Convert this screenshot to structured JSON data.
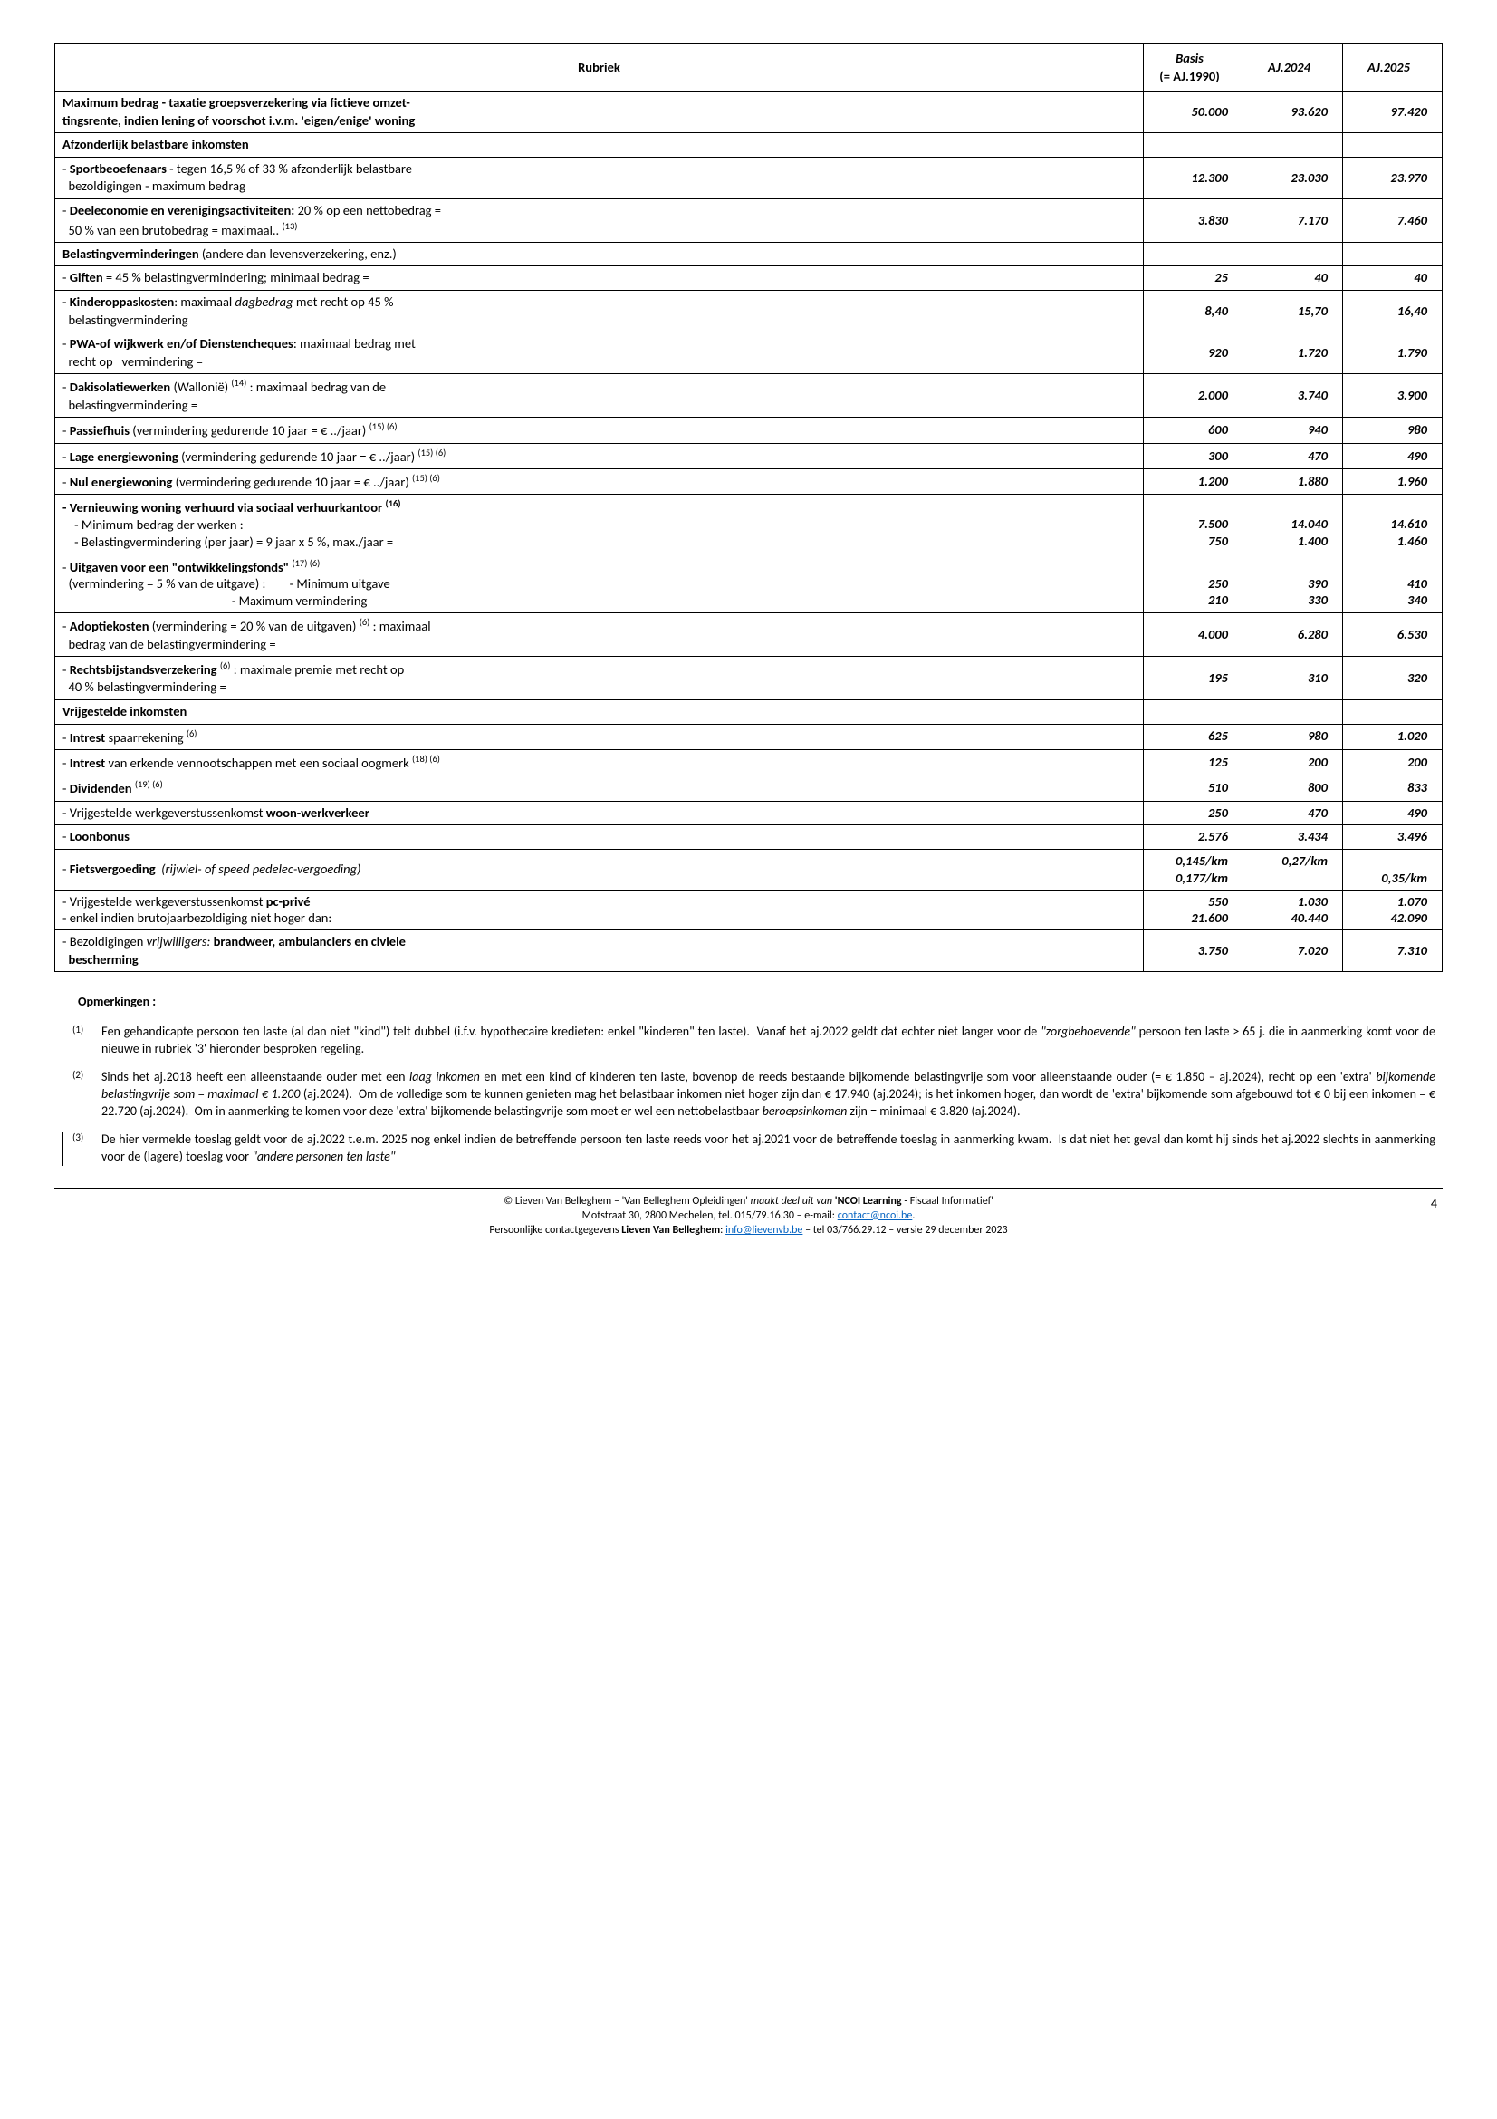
{
  "headers": {
    "rubriek": "Rubriek",
    "basis": "Basis",
    "basis_sub": "(= AJ.1990)",
    "aj2024": "AJ.2024",
    "aj2025": "AJ.2025"
  },
  "rows": [
    {
      "type": "data",
      "html": "<b>Maximum bedrag - taxatie groepsverzekering via fictieve omzet-<br>tingsrente, indien lening of voorschot i.v.m. 'eigen/enige' woning</b>",
      "v": [
        "50.000",
        "93.620",
        "97.420"
      ]
    },
    {
      "type": "section",
      "html": "<b>Afzonderlijk belastbare inkomsten</b>"
    },
    {
      "type": "data",
      "html": "- <b>Sportbeoefenaars</b> - tegen 16,5 % of 33 % afzonderlijk belastbare<br>&nbsp;&nbsp;bezoldigingen - maximum bedrag",
      "v": [
        "12.300",
        "23.030",
        "23.970"
      ]
    },
    {
      "type": "data",
      "html": "- <b>Deeleconomie en verenigingsactiviteiten:</b> 20 % op een nettobedrag =<br>&nbsp;&nbsp;50 % van een brutobedrag = maximaal.. <sup>(13)</sup>",
      "v": [
        "3.830",
        "7.170",
        "7.460"
      ]
    },
    {
      "type": "section",
      "html": "<b>Belastingverminderingen</b> (andere dan levensverzekering, enz.)"
    },
    {
      "type": "data",
      "html": "- <b>Giften</b> = 45 % belastingvermindering; minimaal bedrag =",
      "v": [
        "25",
        "40",
        "40"
      ]
    },
    {
      "type": "data",
      "html": "- <b>Kinderoppaskosten</b>: maximaal <i>dagbedrag</i> met recht op 45 %<br>&nbsp;&nbsp;belastingvermindering",
      "v": [
        "8,40",
        "15,70",
        "16,40"
      ]
    },
    {
      "type": "data",
      "html": "- <b>PWA-of wijkwerk en/of Dienstencheques</b>: maximaal bedrag met<br>&nbsp;&nbsp;recht op &nbsp;&nbsp;vermindering =",
      "v": [
        "920",
        "1.720",
        "1.790"
      ]
    },
    {
      "type": "data",
      "html": "- <b>Dakisolatiewerken</b> (Wallonië) <sup>(14)</sup> : maximaal bedrag van de<br>&nbsp;&nbsp;belastingvermindering =",
      "v": [
        "2.000",
        "3.740",
        "3.900"
      ]
    },
    {
      "type": "data",
      "html": "- <b>Passiefhuis</b> (vermindering gedurende 10 jaar = € ../jaar) <sup>(15) (6)</sup>",
      "v": [
        "600",
        "940",
        "980"
      ]
    },
    {
      "type": "data",
      "html": "- <b>Lage energiewoning</b> (vermindering gedurende 10 jaar = € ../jaar) <sup>(15) (6)</sup>",
      "v": [
        "300",
        "470",
        "490"
      ]
    },
    {
      "type": "data",
      "html": "- <b>Nul energiewoning</b> (vermindering gedurende 10 jaar = € ../jaar) <sup>(15) (6)</sup>",
      "v": [
        "1.200",
        "1.880",
        "1.960"
      ]
    },
    {
      "type": "data",
      "html": "<b>- Vernieuwing woning verhuurd via sociaal verhuurkantoor <sup>(16)</sup></b><br>&nbsp;&nbsp;&nbsp;&nbsp;- Minimum bedrag der werken :<br>&nbsp;&nbsp;&nbsp;&nbsp;- Belastingvermindering (per jaar) = 9 jaar x 5 %, max./jaar =",
      "v": [
        "<br>7.500<br>750",
        "<br>14.040<br>1.400",
        "<br>14.610<br>1.460"
      ],
      "multiline": true
    },
    {
      "type": "data",
      "html": "- <b>Uitgaven voor een \"ontwikkelingsfonds\"</b> <sup>(17) (6)</sup><br>&nbsp;&nbsp;(vermindering = 5 % van de uitgave) :&nbsp;&nbsp;&nbsp;&nbsp;&nbsp;&nbsp;&nbsp;&nbsp;- Minimum uitgave<br>&nbsp;&nbsp;&nbsp;&nbsp;&nbsp;&nbsp;&nbsp;&nbsp;&nbsp;&nbsp;&nbsp;&nbsp;&nbsp;&nbsp;&nbsp;&nbsp;&nbsp;&nbsp;&nbsp;&nbsp;&nbsp;&nbsp;&nbsp;&nbsp;&nbsp;&nbsp;&nbsp;&nbsp;&nbsp;&nbsp;&nbsp;&nbsp;&nbsp;&nbsp;&nbsp;&nbsp;&nbsp;&nbsp;&nbsp;&nbsp;&nbsp;&nbsp;&nbsp;&nbsp;&nbsp;&nbsp;&nbsp;&nbsp;&nbsp;&nbsp;&nbsp;&nbsp;&nbsp;&nbsp;&nbsp;&nbsp;&nbsp;- Maximum vermindering",
      "v": [
        "<br>250<br>210",
        "<br>390<br>330",
        "<br>410<br>340"
      ],
      "multiline": true
    },
    {
      "type": "data",
      "html": "- <b>Adoptiekosten</b> (vermindering = 20 % van de uitgaven) <sup>(6)</sup> : maximaal<br>&nbsp;&nbsp;bedrag van de belastingvermindering =",
      "v": [
        "4.000",
        "6.280",
        "6.530"
      ]
    },
    {
      "type": "data",
      "html": "- <b>Rechtsbijstandsverzekering</b> <sup>(6)</sup> : maximale premie met recht op<br>&nbsp;&nbsp;40 % belastingvermindering =",
      "v": [
        "195",
        "310",
        "320"
      ]
    },
    {
      "type": "section",
      "html": "<b>Vrijgestelde inkomsten</b>"
    },
    {
      "type": "data",
      "html": "- <b>Intrest</b> spaarrekening <sup>(6)</sup>",
      "v": [
        "625",
        "980",
        "1.020"
      ]
    },
    {
      "type": "data",
      "html": "- <b>Intrest</b> van erkende vennootschappen met een sociaal oogmerk <sup>(18) (6)</sup>",
      "v": [
        "125",
        "200",
        "200"
      ]
    },
    {
      "type": "data",
      "html": "- <b>Dividenden</b> <sup>(19) (6)</sup>",
      "v": [
        "510",
        "800",
        "833"
      ]
    },
    {
      "type": "data",
      "html": "- Vrijgestelde werkgeverstussenkomst <b>woon-werkverkeer</b>",
      "v": [
        "250",
        "470",
        "490"
      ]
    },
    {
      "type": "data",
      "html": "- <b>Loonbonus</b>",
      "v": [
        "2.576",
        "3.434",
        "3.496"
      ]
    },
    {
      "type": "data",
      "html": "- <b>Fietsvergoeding</b> &nbsp;<i>(rijwiel- of speed pedelec-vergoeding)</i>",
      "v": [
        "0,145/km<br>0,177/km",
        "0,27/km<br>&nbsp;",
        "<br>0,35/km"
      ],
      "multiline": true
    },
    {
      "type": "data",
      "html": "- Vrijgestelde werkgeverstussenkomst <b>pc-privé</b><br>- enkel indien brutojaarbezoldiging niet hoger dan:",
      "v": [
        "550<br>21.600",
        "1.030<br>40.440",
        "1.070<br>42.090"
      ],
      "multiline": true
    },
    {
      "type": "data",
      "html": "- Bezoldigingen <i>vrijwilligers:</i> <b>brandweer, ambulanciers en civiele<br>&nbsp;&nbsp;bescherming</b>",
      "v": [
        "3.750",
        "7.020",
        "7.310"
      ]
    }
  ],
  "notes": {
    "title": "Opmerkingen :",
    "items": [
      {
        "mark": "(1)",
        "html": "Een gehandicapte persoon ten laste (al dan niet \"kind\") telt dubbel (i.f.v. hypothecaire kredieten: enkel \"kinderen\" ten laste).&nbsp; Vanaf het aj.2022 geldt dat echter niet langer voor de <i>\"zorgbehoevende\"</i> persoon ten laste &gt; 65 j. die in aanmerking komt voor de nieuwe in rubriek '3' hieronder besproken regeling."
      },
      {
        "mark": "(2)",
        "html": "Sinds het aj.2018 heeft een alleenstaande ouder met een <i>laag inkomen</i> en met een kind of kinderen ten laste, bovenop de reeds bestaande bijkomende belastingvrije som voor alleenstaande ouder (= € 1.850 – aj.2024), recht op een 'extra' <i>bijkomende belastingvrije som = maximaal € 1.200</i> (aj.2024).&nbsp; Om de volledige som te kunnen genieten mag het belastbaar inkomen niet hoger zijn dan € 17.940 (aj.2024); is het inkomen hoger, dan wordt de 'extra' bijkomende som afgebouwd tot € 0 bij een inkomen = € 22.720 (aj.2024).&nbsp; Om in aanmerking te komen voor deze 'extra' bijkomende belastingvrije som moet er wel een nettobelastbaar <i>beroepsinkomen</i> zijn = minimaal € 3.820 (aj.2024)."
      },
      {
        "mark": "(3)",
        "html": "De hier vermelde toeslag geldt voor de aj.2022 t.e.m. 2025 nog enkel indien de betreffende persoon ten laste reeds voor het aj.2021 voor de betreffende toeslag in aanmerking kwam.&nbsp; Is dat niet het geval dan komt hij sinds het aj.2022 slechts in aanmerking voor de (lagere) toeslag voor <i>\"andere personen ten laste\"</i>",
        "bar": true
      }
    ]
  },
  "footer": {
    "line1_pre": "© Lieven Van Belleghem – 'Van Belleghem Opleidingen' ",
    "line1_i": "maakt deel uit van ",
    "line1_b": "'NCOI Learning",
    "line1_post": "  - Fiscaal Informatief'",
    "line2_pre": "Motstraat 30, 2800 Mechelen, tel. 015/79.16.30 – e-mail: ",
    "email1": "contact@ncoi.be",
    "line2_post": ".",
    "line3_pre": "Persoonlijke contactgegevens ",
    "line3_b": "Lieven Van Belleghem",
    "line3_mid": ": ",
    "email2": "info@lievenvb.be",
    "line3_post": " – tel 03/766.29.12 – versie 29 december 2023",
    "page": "4"
  }
}
